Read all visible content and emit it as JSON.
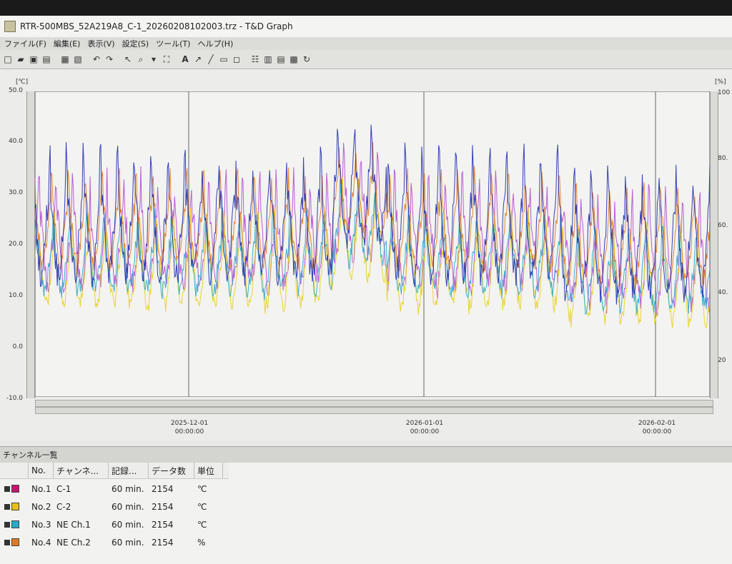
{
  "window": {
    "title": "RTR-500MBS_52A219A8_C-1_20260208102003.trz - T&D Graph"
  },
  "menu": [
    "ファイル(F)",
    "編集(E)",
    "表示(V)",
    "設定(S)",
    "ツール(T)",
    "ヘルプ(H)"
  ],
  "chart_data": {
    "type": "line",
    "y_left": {
      "unit": "[℃]",
      "ylim": [
        -10,
        50
      ],
      "ticks": [
        "50.0",
        "40.0",
        "30.0",
        "20.0",
        "10.0",
        "0.0",
        "-10.0"
      ]
    },
    "y_right": {
      "unit": "[%]",
      "ylim": [
        0,
        100
      ],
      "ticks": [
        "100",
        "80.",
        "60.",
        "40.",
        "20"
      ]
    },
    "x_ticks": [
      {
        "date": "2025-12-01",
        "time": "00:00:00"
      },
      {
        "date": "2026-01-01",
        "time": "00:00:00"
      },
      {
        "date": "2026-02-01",
        "time": "00:00:00"
      }
    ],
    "x_range": [
      "2025-11-07",
      "2026-02-08"
    ],
    "grid": true,
    "series": [
      {
        "name": "C-1",
        "color": "#b44bd1",
        "base": 19,
        "swing": 14,
        "noise": 3
      },
      {
        "name": "C-2",
        "color": "#e7d21a",
        "base": 14,
        "swing": 12,
        "noise": 2
      },
      {
        "name": "NE Ch.1",
        "color": "#2aa8c8",
        "base": 16,
        "swing": 10,
        "noise": 2
      },
      {
        "name": "NE Ch.2",
        "color": "#e07a22",
        "base": 22,
        "swing": 12,
        "noise": 2
      },
      {
        "name": "",
        "color": "#1f2bb0",
        "base": 22,
        "swing": 16,
        "noise": 3
      }
    ]
  },
  "channel_panel": {
    "title": "チャンネル一覧",
    "headers": [
      "No.",
      "チャンネ...",
      "記録...",
      "データ数",
      "単位"
    ],
    "rows": [
      {
        "no": "No.1",
        "name": "C-1",
        "interval": "60 min.",
        "count": "2154",
        "unit": "℃",
        "color": "#c8146e"
      },
      {
        "no": "No.2",
        "name": "C-2",
        "interval": "60 min.",
        "count": "2154",
        "unit": "℃",
        "color": "#e7c01a"
      },
      {
        "no": "No.3",
        "name": "NE Ch.1",
        "interval": "60 min.",
        "count": "2154",
        "unit": "℃",
        "color": "#27a9c5"
      },
      {
        "no": "No.4",
        "name": "NE Ch.2",
        "interval": "60 min.",
        "count": "2154",
        "unit": "%",
        "color": "#e07a22"
      }
    ]
  }
}
